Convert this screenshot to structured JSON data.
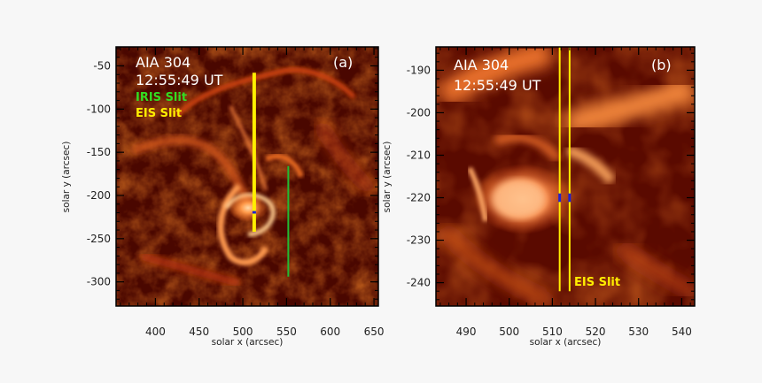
{
  "panels": [
    {
      "id": "a",
      "instrument": "AIA 304",
      "time": "12:55:49 UT",
      "panel_label": "(a)",
      "legend": [
        {
          "text": "IRIS Slit",
          "color": "#33dd22"
        },
        {
          "text": "EIS Slit",
          "color": "#ffee00"
        }
      ],
      "xlabel": "solar x (arcsec)",
      "ylabel": "solar y (arcsec)",
      "xlim": [
        355,
        655
      ],
      "ylim": [
        -328,
        -28
      ],
      "xticks": [
        400,
        450,
        500,
        550,
        600,
        650
      ],
      "yticks": [
        -50,
        -100,
        -150,
        -200,
        -250,
        -300
      ],
      "lines": [
        {
          "name": "eis-slit",
          "color": "#ffee00",
          "x": 513,
          "y0": -242,
          "y1": -58
        },
        {
          "name": "iris-slit",
          "color": "#22bb33",
          "x": 552,
          "y0": -294,
          "y1": -166
        },
        {
          "name": "blue-marker",
          "color": "#2222cc",
          "x": 513,
          "y0": -221,
          "y1": -218
        }
      ]
    },
    {
      "id": "b",
      "instrument": "AIA 304",
      "time": "12:55:49 UT",
      "panel_label": "(b)",
      "slit_label": "EIS Slit",
      "xlabel": "solar x (arcsec)",
      "ylabel": "solar y (arcsec)",
      "xlim": [
        483,
        543
      ],
      "ylim": [
        -245.5,
        -184.5
      ],
      "xticks": [
        490,
        500,
        510,
        520,
        530,
        540
      ],
      "yticks": [
        -190,
        -200,
        -210,
        -220,
        -230,
        -240
      ],
      "lines": [
        {
          "name": "eis-slit-left",
          "color": "#ffee00",
          "x": 511.7,
          "y0": -242,
          "y1": -184.5
        },
        {
          "name": "eis-slit-right",
          "color": "#ffee00",
          "x": 514.0,
          "y0": -242,
          "y1": -184.5
        },
        {
          "name": "blue-marker-left",
          "color": "#2222cc",
          "x": 511.7,
          "y0": -221,
          "y1": -219
        },
        {
          "name": "blue-marker-right",
          "color": "#2222cc",
          "x": 514.0,
          "y0": -221,
          "y1": -219
        }
      ]
    }
  ],
  "colors": {
    "frame": "#000000",
    "background": "#f7f7f7"
  }
}
